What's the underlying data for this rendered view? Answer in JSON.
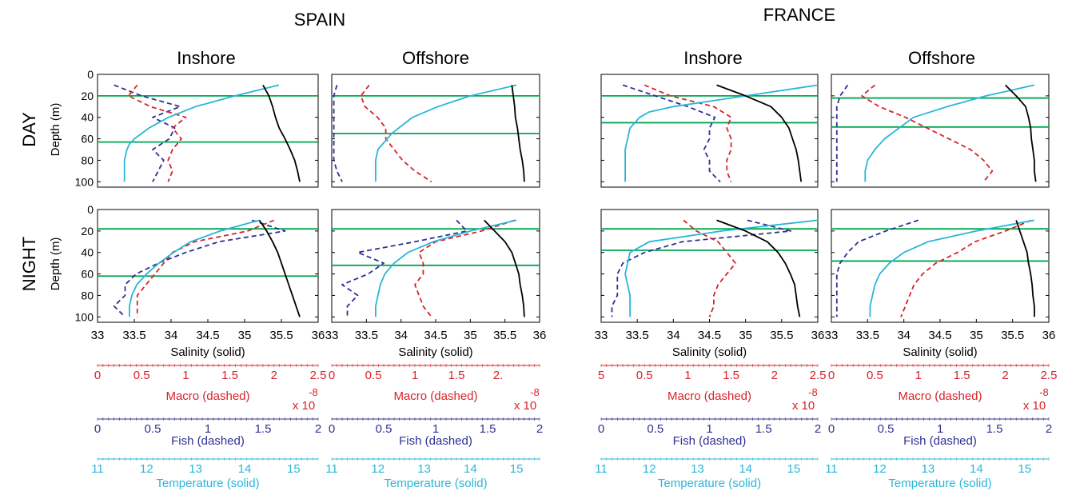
{
  "header": {
    "countries": [
      "SPAIN",
      "FRANCE"
    ],
    "columns": [
      "Inshore",
      "Offshore",
      "Inshore",
      "Offshore"
    ],
    "rows": [
      "DAY",
      "NIGHT"
    ],
    "depth_label": "Depth (m)"
  },
  "axes": {
    "depth": {
      "label": "Depth (m)",
      "lim": [
        0,
        105
      ],
      "ticks": [
        "0",
        "20",
        "40",
        "60",
        "80",
        "100"
      ],
      "inverted": true
    },
    "salinity": {
      "label": "Salinity (solid)",
      "lim": [
        33,
        36
      ],
      "ticks": [
        "33",
        "33.5",
        "34",
        "34.5",
        "35",
        "35.5",
        "36"
      ],
      "color": "#000000"
    },
    "macro": {
      "label": "Macro (dashed)",
      "lim": [
        0,
        2.5
      ],
      "color": "#d8232a",
      "multiplier": "x 10",
      "exponent": "-8",
      "ticks_by_col": [
        [
          "0",
          "0.5",
          "1",
          "1.5",
          "2",
          "2.5"
        ],
        [
          "0",
          "0.5",
          "1",
          "1.5",
          "2."
        ],
        [
          "5",
          "0.5",
          "1",
          "1.5",
          "2",
          "2.5"
        ],
        [
          "0",
          "0.5",
          "1",
          "1.5",
          "2",
          "2.5"
        ]
      ]
    },
    "fish": {
      "label": "Fish (dashed)",
      "lim": [
        0,
        2
      ],
      "ticks": [
        "0",
        "0.5",
        "1",
        "1.5",
        "2"
      ],
      "color": "#2e3192"
    },
    "temperature": {
      "label": "Temperature (solid)",
      "lim": [
        11,
        15.5
      ],
      "ticks": [
        "11",
        "12",
        "13",
        "14",
        "15"
      ],
      "color": "#29b6d8"
    }
  },
  "colors": {
    "salinity": "#000000",
    "temperature": "#29b6d8",
    "macro": "#d8232a",
    "fish": "#2e3192",
    "thermocline": "#00a651"
  },
  "chart_data": [
    {
      "type": "line",
      "country": "SPAIN",
      "site": "Inshore",
      "period": "DAY",
      "hlines": [
        20,
        63
      ],
      "salinity": {
        "depth": [
          10,
          20,
          30,
          40,
          50,
          60,
          70,
          80,
          90,
          100
        ],
        "values": [
          35.25,
          35.33,
          35.38,
          35.42,
          35.47,
          35.55,
          35.62,
          35.68,
          35.72,
          35.75
        ]
      },
      "temperature": {
        "depth": [
          10,
          20,
          30,
          40,
          50,
          60,
          65,
          70,
          80,
          90,
          100
        ],
        "values": [
          14.7,
          13.8,
          13.0,
          12.45,
          12.05,
          11.75,
          11.65,
          11.6,
          11.55,
          11.55,
          11.55
        ]
      },
      "macro": {
        "depth": [
          10,
          20,
          30,
          40,
          50,
          60,
          70,
          80,
          90,
          100
        ],
        "values": [
          0.45,
          0.35,
          0.6,
          1.0,
          0.85,
          0.95,
          0.85,
          0.8,
          0.85,
          0.8
        ]
      },
      "fish": {
        "depth": [
          10,
          20,
          30,
          40,
          50,
          60,
          70,
          80,
          90,
          100
        ],
        "values": [
          0.15,
          0.4,
          0.75,
          0.5,
          0.7,
          0.65,
          0.5,
          0.6,
          0.55,
          0.5
        ]
      }
    },
    {
      "type": "line",
      "country": "SPAIN",
      "site": "Offshore",
      "period": "DAY",
      "hlines": [
        20,
        55
      ],
      "salinity": {
        "depth": [
          10,
          20,
          30,
          40,
          50,
          60,
          70,
          80,
          90,
          100
        ],
        "values": [
          35.6,
          35.62,
          35.64,
          35.65,
          35.68,
          35.7,
          35.72,
          35.75,
          35.77,
          35.78
        ]
      },
      "temperature": {
        "depth": [
          10,
          20,
          30,
          40,
          45,
          50,
          55,
          60,
          70,
          80,
          90,
          100
        ],
        "values": [
          15.0,
          14.0,
          13.3,
          12.75,
          12.6,
          12.45,
          12.3,
          12.2,
          12.0,
          11.95,
          11.95,
          11.95
        ]
      },
      "macro": {
        "depth": [
          10,
          20,
          30,
          40,
          50,
          60,
          70,
          80,
          90,
          100
        ],
        "values": [
          0.45,
          0.35,
          0.4,
          0.55,
          0.65,
          0.65,
          0.75,
          0.85,
          1.0,
          1.2
        ]
      },
      "fish": {
        "depth": [
          10,
          20,
          30,
          40,
          50,
          60,
          70,
          80,
          90,
          100
        ],
        "values": [
          0.05,
          0.02,
          0.02,
          0.02,
          0.02,
          0.02,
          0.02,
          0.02,
          0.05,
          0.1
        ]
      }
    },
    {
      "type": "line",
      "country": "FRANCE",
      "site": "Inshore",
      "period": "DAY",
      "hlines": [
        20,
        45
      ],
      "salinity": {
        "depth": [
          10,
          20,
          30,
          40,
          50,
          60,
          70,
          80,
          90,
          100
        ],
        "values": [
          34.6,
          35.0,
          35.35,
          35.5,
          35.6,
          35.65,
          35.7,
          35.73,
          35.75,
          35.77
        ]
      },
      "temperature": {
        "depth": [
          10,
          20,
          30,
          35,
          40,
          50,
          60,
          70,
          80,
          90,
          100
        ],
        "values": [
          15.5,
          14.0,
          12.5,
          12.0,
          11.8,
          11.6,
          11.55,
          11.5,
          11.5,
          11.5,
          11.5
        ]
      },
      "macro": {
        "depth": [
          10,
          20,
          30,
          40,
          50,
          60,
          70,
          80,
          90,
          100
        ],
        "values": [
          0.5,
          0.8,
          1.3,
          1.5,
          1.45,
          1.5,
          1.5,
          1.45,
          1.45,
          1.5
        ]
      },
      "fish": {
        "depth": [
          10,
          20,
          30,
          40,
          50,
          60,
          70,
          80,
          90,
          100
        ],
        "values": [
          0.2,
          0.5,
          0.8,
          1.05,
          1.0,
          1.0,
          0.95,
          1.0,
          1.0,
          1.1
        ]
      }
    },
    {
      "type": "line",
      "country": "FRANCE",
      "site": "Offshore",
      "period": "DAY",
      "hlines": [
        22,
        49
      ],
      "salinity": {
        "depth": [
          10,
          20,
          30,
          40,
          50,
          60,
          70,
          80,
          90,
          100
        ],
        "values": [
          35.4,
          35.55,
          35.68,
          35.72,
          35.75,
          35.76,
          35.78,
          35.8,
          35.8,
          35.82
        ]
      },
      "temperature": {
        "depth": [
          10,
          20,
          30,
          40,
          50,
          60,
          70,
          80,
          90,
          100
        ],
        "values": [
          15.2,
          14.2,
          13.4,
          12.7,
          12.4,
          12.1,
          11.9,
          11.75,
          11.7,
          11.7
        ]
      },
      "macro": {
        "depth": [
          10,
          20,
          30,
          40,
          50,
          60,
          70,
          80,
          90,
          100
        ],
        "values": [
          0.5,
          0.35,
          0.55,
          0.85,
          1.1,
          1.35,
          1.6,
          1.75,
          1.85,
          1.75
        ]
      },
      "fish": {
        "depth": [
          10,
          20,
          30,
          40,
          50,
          60,
          70,
          80,
          90,
          100
        ],
        "values": [
          0.15,
          0.08,
          0.05,
          0.05,
          0.05,
          0.05,
          0.05,
          0.05,
          0.05,
          0.05
        ]
      }
    },
    {
      "type": "line",
      "country": "SPAIN",
      "site": "Inshore",
      "period": "NIGHT",
      "hlines": [
        18,
        62
      ],
      "salinity": {
        "depth": [
          10,
          20,
          30,
          40,
          50,
          60,
          70,
          80,
          90,
          100
        ],
        "values": [
          35.2,
          35.3,
          35.38,
          35.45,
          35.5,
          35.55,
          35.6,
          35.65,
          35.7,
          35.75
        ]
      },
      "temperature": {
        "depth": [
          10,
          20,
          30,
          40,
          50,
          60,
          70,
          80,
          90,
          100
        ],
        "values": [
          14.3,
          13.5,
          12.9,
          12.55,
          12.25,
          12.0,
          11.8,
          11.7,
          11.65,
          11.65
        ]
      },
      "macro": {
        "depth": [
          10,
          20,
          30,
          40,
          50,
          60,
          70,
          80,
          90,
          100
        ],
        "values": [
          2.0,
          1.7,
          1.1,
          0.85,
          0.75,
          0.65,
          0.55,
          0.45,
          0.45,
          0.45
        ]
      },
      "fish": {
        "depth": [
          10,
          20,
          30,
          40,
          50,
          60,
          70,
          80,
          90,
          100
        ],
        "values": [
          1.4,
          1.7,
          1.1,
          0.8,
          0.55,
          0.35,
          0.25,
          0.25,
          0.15,
          0.25
        ]
      }
    },
    {
      "type": "line",
      "country": "SPAIN",
      "site": "Offshore",
      "period": "NIGHT",
      "hlines": [
        18,
        52
      ],
      "salinity": {
        "depth": [
          10,
          20,
          30,
          40,
          50,
          60,
          70,
          80,
          90,
          100
        ],
        "values": [
          35.2,
          35.35,
          35.5,
          35.6,
          35.65,
          35.7,
          35.72,
          35.75,
          35.77,
          35.78
        ]
      },
      "temperature": {
        "depth": [
          10,
          20,
          30,
          40,
          50,
          60,
          70,
          80,
          90,
          100
        ],
        "values": [
          15.0,
          14.0,
          13.2,
          12.65,
          12.35,
          12.15,
          12.05,
          12.0,
          11.95,
          11.95
        ]
      },
      "macro": {
        "depth": [
          10,
          20,
          30,
          40,
          50,
          60,
          70,
          80,
          90,
          100
        ],
        "values": [
          2.2,
          1.8,
          1.25,
          1.05,
          1.1,
          1.1,
          1.0,
          1.05,
          1.1,
          1.2
        ]
      },
      "fish": {
        "depth": [
          10,
          20,
          30,
          40,
          50,
          60,
          70,
          80,
          90,
          100
        ],
        "values": [
          1.2,
          1.3,
          0.8,
          0.25,
          0.5,
          0.35,
          0.1,
          0.25,
          0.15,
          0.15
        ]
      }
    },
    {
      "type": "line",
      "country": "FRANCE",
      "site": "Inshore",
      "period": "NIGHT",
      "hlines": [
        18,
        38
      ],
      "salinity": {
        "depth": [
          10,
          20,
          30,
          40,
          50,
          60,
          70,
          80,
          90,
          100
        ],
        "values": [
          34.6,
          35.0,
          35.3,
          35.45,
          35.55,
          35.62,
          35.68,
          35.7,
          35.72,
          35.75
        ]
      },
      "temperature": {
        "depth": [
          10,
          20,
          30,
          40,
          50,
          60,
          70,
          80,
          90,
          100
        ],
        "values": [
          15.5,
          13.5,
          12.0,
          11.6,
          11.55,
          11.5,
          11.55,
          11.6,
          11.6,
          11.6
        ]
      },
      "macro": {
        "depth": [
          10,
          20,
          30,
          40,
          50,
          60,
          70,
          80,
          90,
          100
        ],
        "values": [
          0.95,
          1.1,
          1.35,
          1.45,
          1.55,
          1.45,
          1.35,
          1.3,
          1.3,
          1.25
        ]
      },
      "fish": {
        "depth": [
          10,
          20,
          30,
          40,
          50,
          60,
          70,
          80,
          90,
          100
        ],
        "values": [
          1.35,
          1.75,
          0.75,
          0.4,
          0.2,
          0.15,
          0.15,
          0.15,
          0.1,
          0.1
        ]
      }
    },
    {
      "type": "line",
      "country": "FRANCE",
      "site": "Offshore",
      "period": "NIGHT",
      "hlines": [
        18,
        48
      ],
      "salinity": {
        "depth": [
          10,
          20,
          30,
          40,
          50,
          60,
          70,
          80,
          90,
          100
        ],
        "values": [
          35.55,
          35.6,
          35.65,
          35.7,
          35.72,
          35.75,
          35.77,
          35.78,
          35.8,
          35.8
        ]
      },
      "temperature": {
        "depth": [
          10,
          20,
          30,
          40,
          50,
          60,
          70,
          80,
          90,
          100
        ],
        "values": [
          15.2,
          14.0,
          13.0,
          12.5,
          12.2,
          12.0,
          11.9,
          11.85,
          11.8,
          11.8
        ]
      },
      "macro": {
        "depth": [
          10,
          20,
          30,
          40,
          50,
          60,
          70,
          80,
          90,
          100
        ],
        "values": [
          2.3,
          2.0,
          1.65,
          1.45,
          1.2,
          1.05,
          0.95,
          0.9,
          0.85,
          0.8
        ]
      },
      "fish": {
        "depth": [
          10,
          20,
          30,
          40,
          50,
          60,
          70,
          80,
          90,
          100
        ],
        "values": [
          0.8,
          0.5,
          0.25,
          0.15,
          0.08,
          0.05,
          0.05,
          0.05,
          0.05,
          0.05
        ]
      }
    }
  ]
}
